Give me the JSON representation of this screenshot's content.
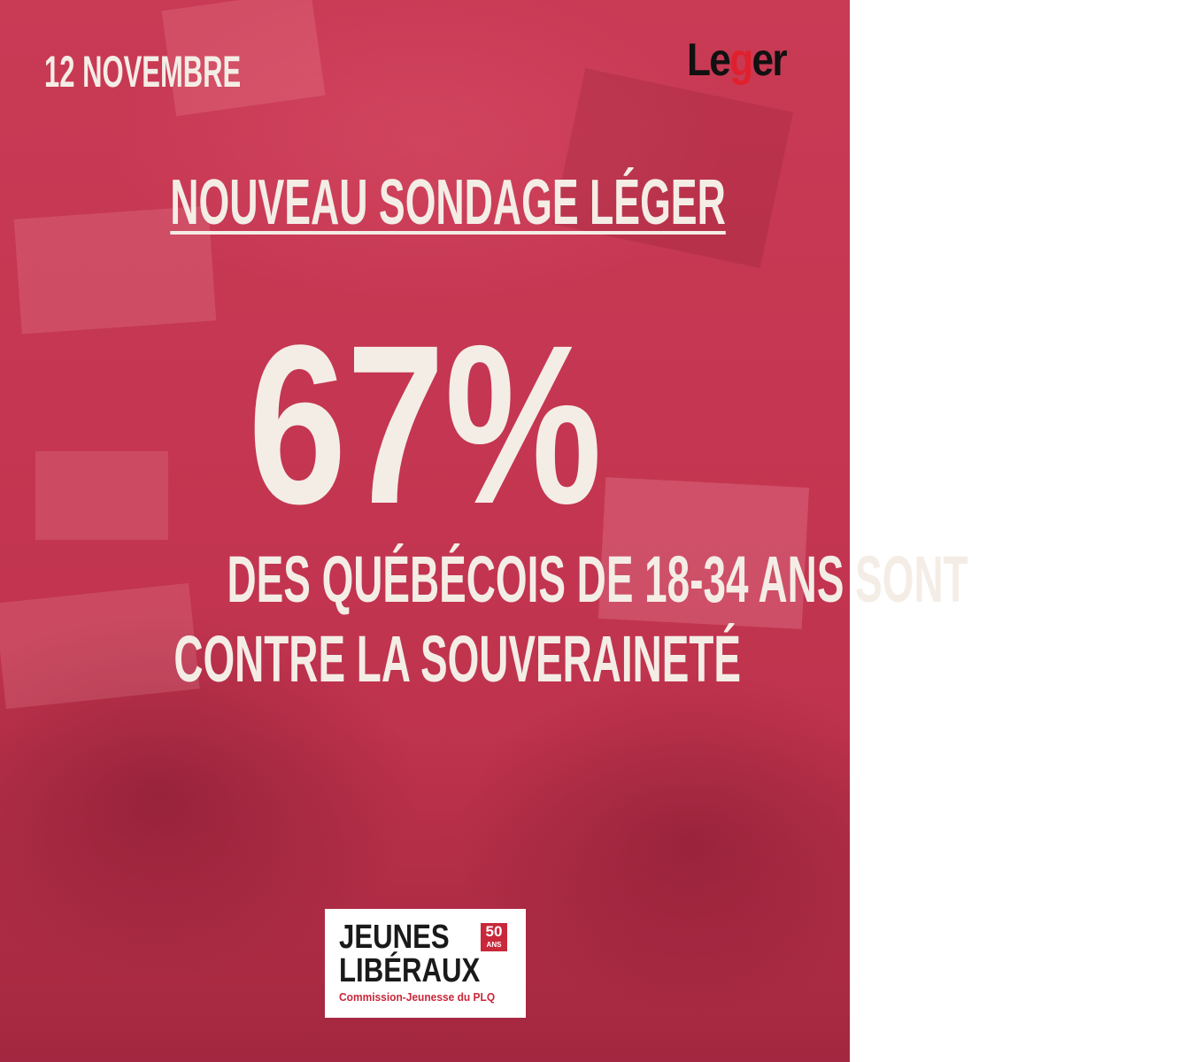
{
  "header": {
    "date": "12 NOVEMBRE",
    "brand_logo": [
      "Le",
      "g",
      "er"
    ]
  },
  "headline": {
    "title": "NOUVEAU SONDAGE LÉGER",
    "stat": "67%",
    "lines": [
      "DES QUÉBÉCOIS DE 18-34 ANS SONT",
      "CONTRE LA SOUVERAINETÉ"
    ]
  },
  "footer_logo": {
    "lines": [
      "JEUNES",
      "LIBÉRAUX"
    ],
    "badge": [
      "50",
      "ANS"
    ],
    "tagline": "Commission-Jeunesse du PLQ"
  }
}
